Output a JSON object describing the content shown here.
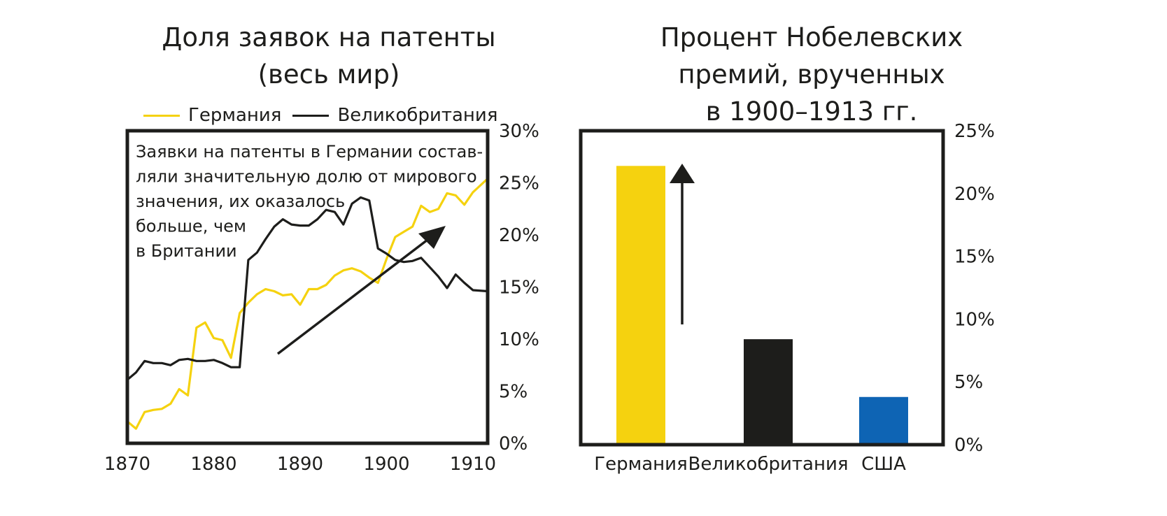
{
  "left_chart": {
    "title_lines": [
      "Доля заявок на патенты",
      "(весь мир)"
    ],
    "legend": [
      {
        "label": "Германия",
        "color": "#f5d20f"
      },
      {
        "label": "Великобритания",
        "color": "#1d1d1b"
      }
    ],
    "annotation_lines": [
      "Заявки на патенты в Германии состав-",
      "ляли значительную долю от мирового",
      "значения, их оказалось",
      "больше, чем",
      "в Британии"
    ]
  },
  "right_chart": {
    "title_lines": [
      "Процент Нобелевских",
      "премий, врученных",
      "в 1900–1913 гг."
    ]
  },
  "chart_data": [
    {
      "type": "line",
      "title": "Доля заявок на патенты (весь мир)",
      "x_ticks": [
        "1870",
        "1880",
        "1890",
        "1900",
        "1910"
      ],
      "y_ticks": [
        "0%",
        "5%",
        "10%",
        "15%",
        "20%",
        "25%",
        "30%"
      ],
      "xlim": [
        1870,
        1911.7
      ],
      "ylim": [
        0,
        30
      ],
      "series": [
        {
          "name": "Германия",
          "color": "#f5d20f",
          "x": [
            1870,
            1871,
            1872,
            1873,
            1874,
            1875,
            1876,
            1877,
            1878,
            1879,
            1880,
            1881,
            1882,
            1883,
            1884,
            1885,
            1886,
            1887,
            1888,
            1889,
            1890,
            1891,
            1892,
            1893,
            1894,
            1895,
            1896,
            1897,
            1898,
            1899,
            1900,
            1901,
            1902,
            1903,
            1904,
            1905,
            1906,
            1907,
            1908,
            1909,
            1910,
            1911.7
          ],
          "values": [
            2.1,
            1.4,
            3.0,
            3.2,
            3.3,
            3.8,
            5.2,
            4.6,
            11.1,
            11.6,
            10.1,
            9.9,
            8.2,
            12.5,
            13.5,
            14.3,
            14.8,
            14.6,
            14.2,
            14.3,
            13.3,
            14.8,
            14.8,
            15.2,
            16.1,
            16.6,
            16.8,
            16.5,
            15.9,
            15.4,
            17.7,
            19.8,
            20.3,
            20.8,
            22.8,
            22.2,
            22.5,
            24.0,
            23.8,
            22.9,
            24.1,
            25.4
          ]
        },
        {
          "name": "Великобритания",
          "color": "#1d1d1b",
          "x": [
            1870,
            1871,
            1872,
            1873,
            1874,
            1875,
            1876,
            1877,
            1878,
            1879,
            1880,
            1881,
            1882,
            1883,
            1884,
            1885,
            1886,
            1887,
            1888,
            1889,
            1890,
            1891,
            1892,
            1893,
            1894,
            1895,
            1896,
            1897,
            1898,
            1899,
            1900,
            1901,
            1902,
            1903,
            1904,
            1905,
            1906,
            1907,
            1908,
            1909,
            1910,
            1911.7
          ],
          "values": [
            6.1,
            6.8,
            7.9,
            7.7,
            7.7,
            7.5,
            8.0,
            8.1,
            7.9,
            7.9,
            8.0,
            7.7,
            7.3,
            7.3,
            17.6,
            18.3,
            19.6,
            20.8,
            21.5,
            21.0,
            20.9,
            20.9,
            21.5,
            22.4,
            22.2,
            21.0,
            23.0,
            23.6,
            23.3,
            18.7,
            18.2,
            17.6,
            17.4,
            17.5,
            17.8,
            16.9,
            16.0,
            14.9,
            16.2,
            15.4,
            14.7,
            14.6
          ]
        }
      ]
    },
    {
      "type": "bar",
      "title": "Процент Нобелевских премий, врученных в 1900–1913 гг.",
      "categories": [
        "Германия",
        "Великобритания",
        "США"
      ],
      "values": [
        22.2,
        8.4,
        3.8
      ],
      "colors": [
        "#f5d20f",
        "#1d1d1b",
        "#0e64b4"
      ],
      "y_ticks": [
        "0%",
        "5%",
        "10%",
        "15%",
        "20%",
        "25%"
      ],
      "ylim": [
        0,
        25
      ]
    }
  ]
}
